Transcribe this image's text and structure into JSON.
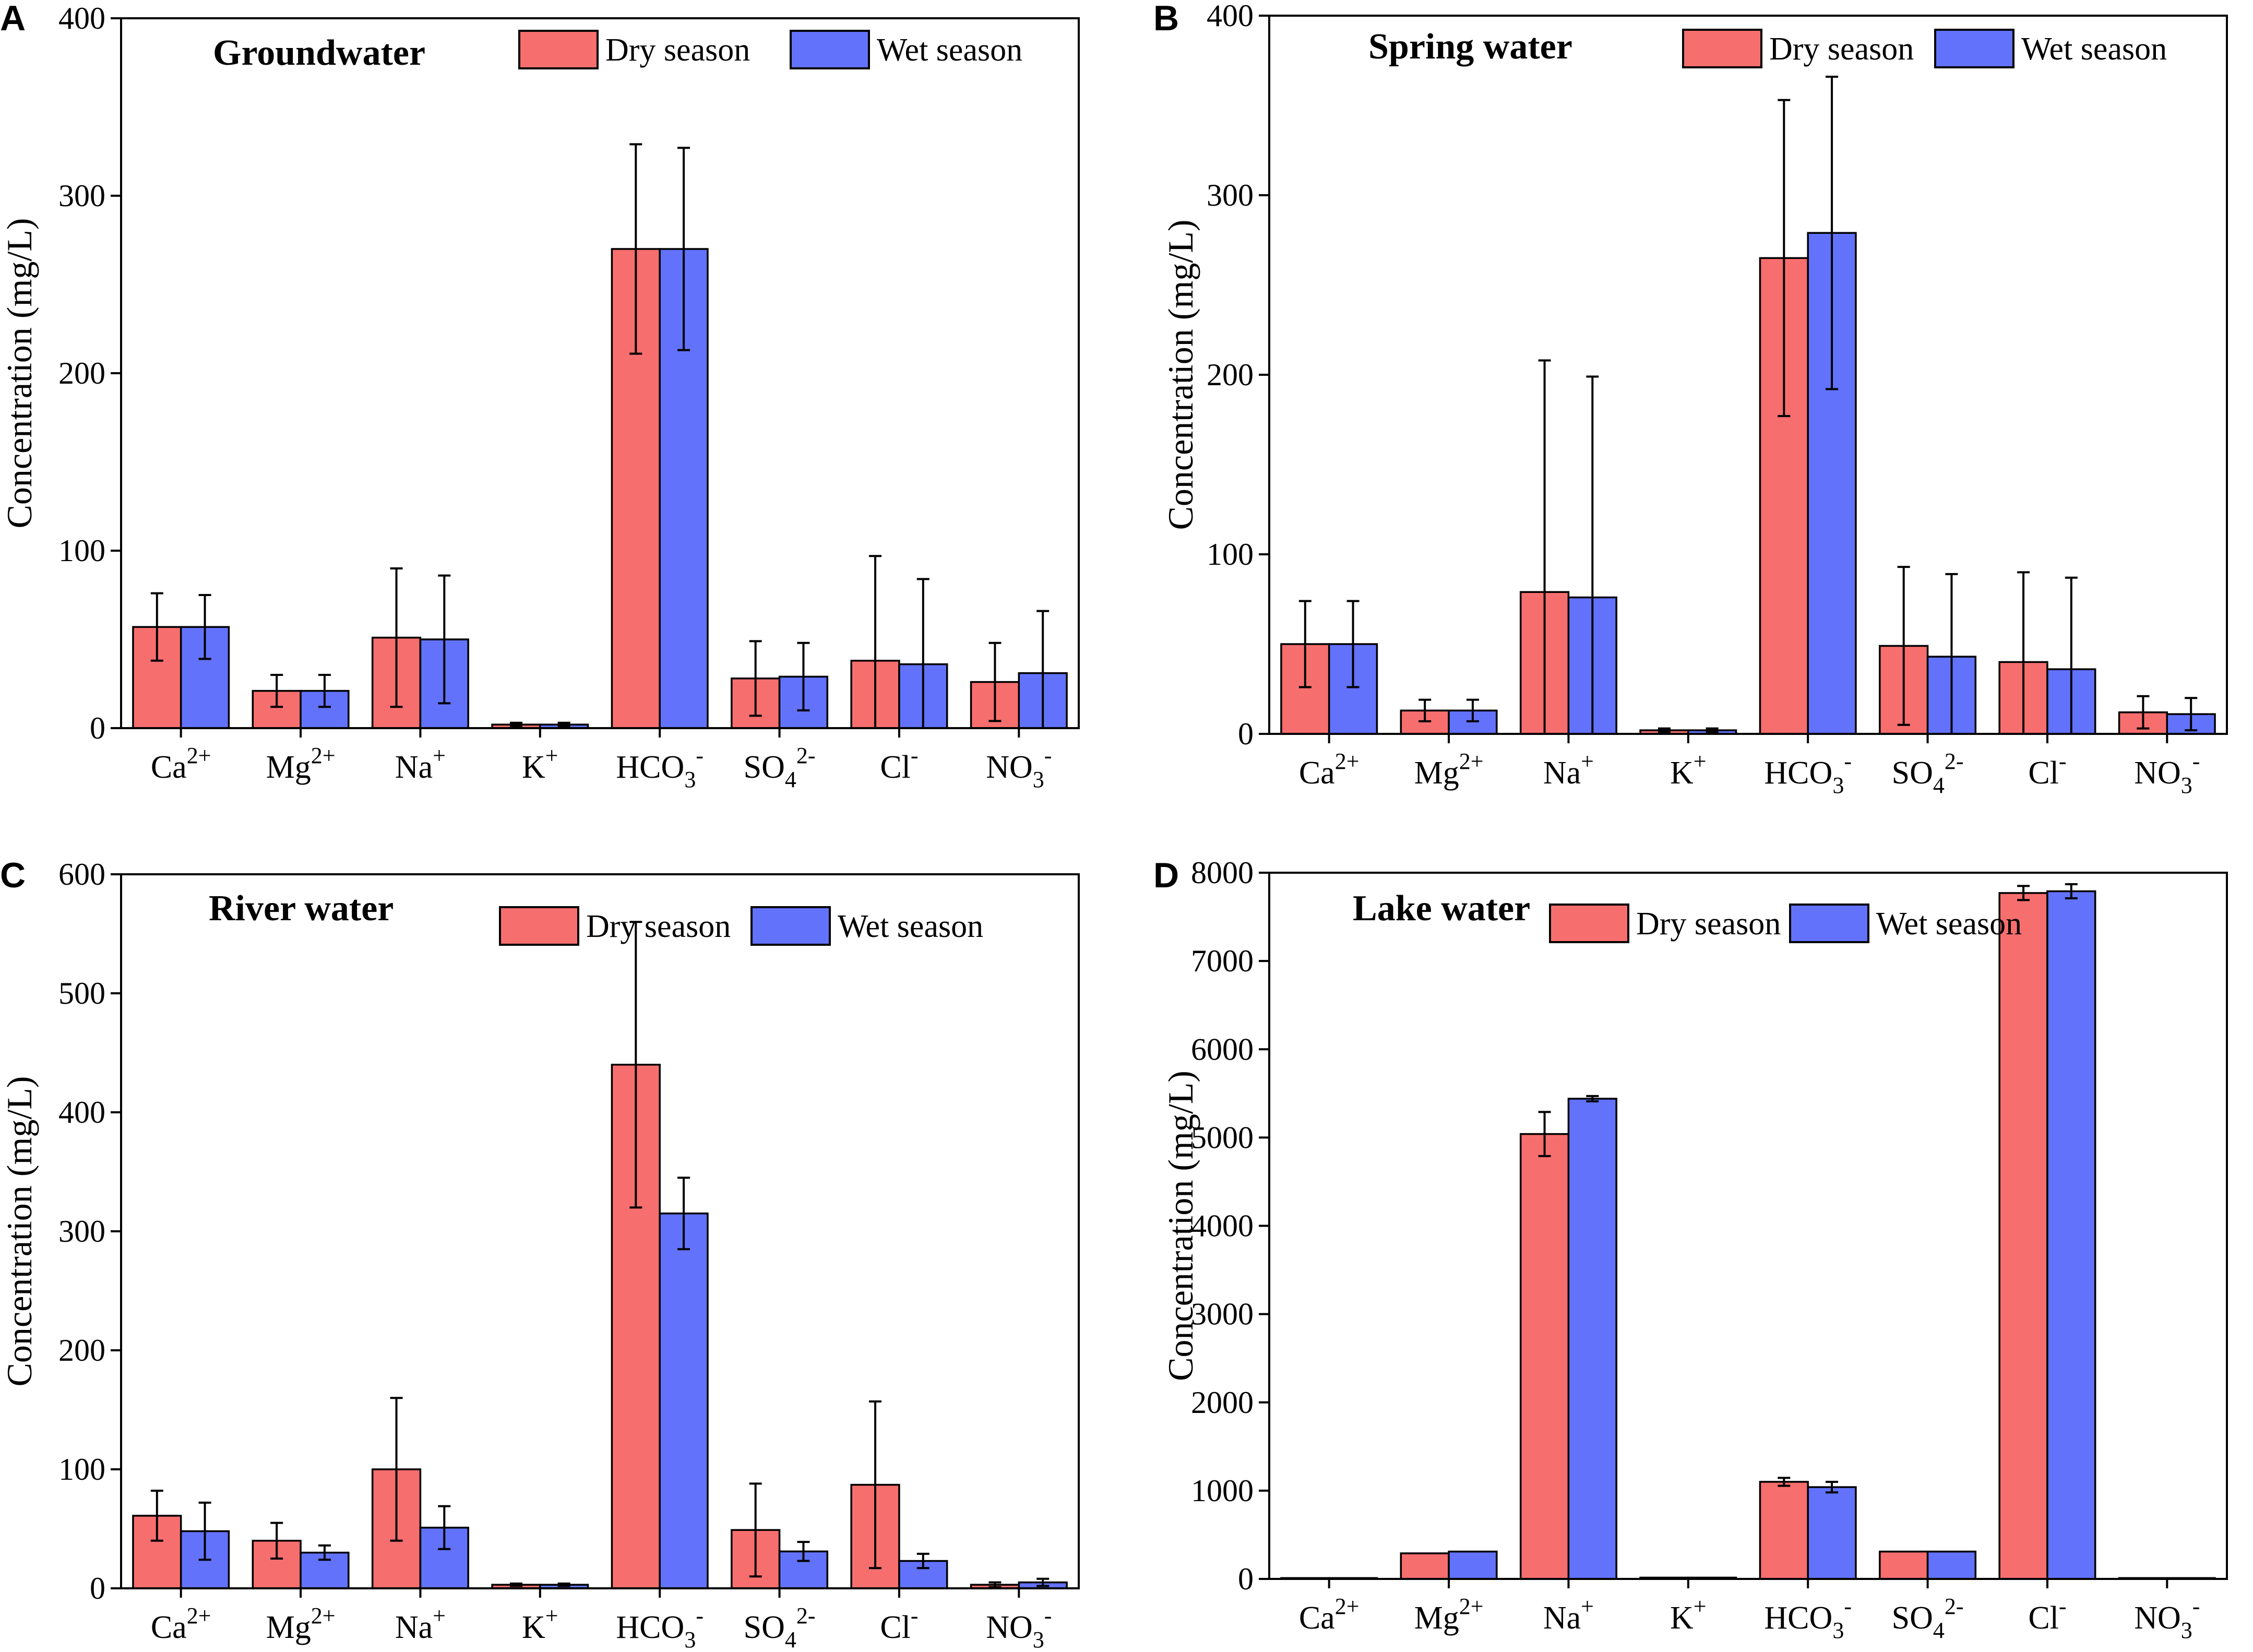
{
  "figure": {
    "categories": [
      {
        "base": "Ca",
        "sub": "",
        "sup": "2+"
      },
      {
        "base": "Mg",
        "sub": "",
        "sup": "2+"
      },
      {
        "base": "Na",
        "sub": "",
        "sup": "+"
      },
      {
        "base": "K",
        "sub": "",
        "sup": "+"
      },
      {
        "base": "HCO",
        "sub": "3",
        "sup": "-"
      },
      {
        "base": "SO",
        "sub": "4",
        "sup": "2-"
      },
      {
        "base": "Cl",
        "sub": "",
        "sup": "-"
      },
      {
        "base": "NO",
        "sub": "3",
        "sup": "-"
      }
    ],
    "colors": {
      "dry": "#f76e6e",
      "wet": "#6272fb"
    }
  },
  "chart_data": [
    {
      "panel": "A",
      "type": "bar",
      "title": "Groundwater",
      "ylabel": "Concentration (mg/L)",
      "xlabel": "",
      "categories": [
        "Ca2+",
        "Mg2+",
        "Na+",
        "K+",
        "HCO3-",
        "SO42-",
        "Cl-",
        "NO3-"
      ],
      "ylim": [
        0,
        400
      ],
      "yticks": [
        0,
        100,
        200,
        300,
        400
      ],
      "legend": [
        "Dry season",
        "Wet season"
      ],
      "series": [
        {
          "name": "Dry season",
          "values": [
            57,
            21,
            51,
            2,
            270,
            28,
            38,
            26
          ],
          "errors": [
            19,
            9,
            39,
            1,
            59,
            21,
            59,
            22
          ]
        },
        {
          "name": "Wet season",
          "values": [
            57,
            21,
            50,
            2,
            270,
            29,
            36,
            31
          ],
          "errors": [
            18,
            9,
            36,
            1,
            57,
            19,
            48,
            35
          ]
        }
      ]
    },
    {
      "panel": "B",
      "type": "bar",
      "title": "Spring water",
      "ylabel": "Concentration (mg/L)",
      "xlabel": "",
      "categories": [
        "Ca2+",
        "Mg2+",
        "Na+",
        "K+",
        "HCO3-",
        "SO42-",
        "Cl-",
        "NO3-"
      ],
      "ylim": [
        0,
        400
      ],
      "yticks": [
        0,
        100,
        200,
        300,
        400
      ],
      "legend": [
        "Dry season",
        "Wet season"
      ],
      "series": [
        {
          "name": "Dry season",
          "values": [
            50,
            13,
            79,
            2,
            265,
            49,
            40,
            12
          ],
          "errors": [
            24,
            6,
            129,
            1,
            88,
            44,
            50,
            9
          ]
        },
        {
          "name": "Wet season",
          "values": [
            50,
            13,
            76,
            2,
            279,
            43,
            36,
            11
          ],
          "errors": [
            24,
            6,
            123,
            1,
            87,
            46,
            51,
            9
          ]
        }
      ]
    },
    {
      "panel": "C",
      "type": "bar",
      "title": "River water",
      "ylabel": "Concentration (mg/L)",
      "xlabel": "",
      "categories": [
        "Ca2+",
        "Mg2+",
        "Na+",
        "K+",
        "HCO3-",
        "SO42-",
        "Cl-",
        "NO3-"
      ],
      "ylim": [
        0,
        600
      ],
      "yticks": [
        0,
        100,
        200,
        300,
        400,
        500,
        600
      ],
      "legend": [
        "Dry season",
        "Wet season"
      ],
      "series": [
        {
          "name": "Dry season",
          "values": [
            61,
            40,
            100,
            3,
            440,
            49,
            87,
            3
          ],
          "errors": [
            21,
            15,
            60,
            1,
            120,
            39,
            70,
            2
          ]
        },
        {
          "name": "Wet season",
          "values": [
            48,
            30,
            51,
            3,
            315,
            31,
            23,
            5
          ],
          "errors": [
            24,
            6,
            18,
            1,
            30,
            8,
            6,
            3
          ]
        }
      ]
    },
    {
      "panel": "D",
      "type": "bar",
      "title": "Lake water",
      "ylabel": "Concentration (mg/L)",
      "xlabel": "",
      "categories": [
        "Ca2+",
        "Mg2+",
        "Na+",
        "K+",
        "HCO3-",
        "SO42-",
        "Cl-",
        "NO3-"
      ],
      "ylim": [
        0,
        8000
      ],
      "yticks": [
        0,
        1000,
        2000,
        3000,
        4000,
        5000,
        6000,
        7000,
        8000
      ],
      "legend": [
        "Dry season",
        "Wet season"
      ],
      "series": [
        {
          "name": "Dry season",
          "values": [
            10,
            290,
            5040,
            15,
            1100,
            310,
            7770,
            10
          ],
          "errors": [
            0,
            0,
            250,
            0,
            45,
            0,
            80,
            0
          ]
        },
        {
          "name": "Wet season",
          "values": [
            10,
            310,
            5440,
            15,
            1040,
            310,
            7790,
            10
          ],
          "errors": [
            0,
            0,
            30,
            0,
            60,
            0,
            80,
            0
          ]
        }
      ]
    }
  ]
}
